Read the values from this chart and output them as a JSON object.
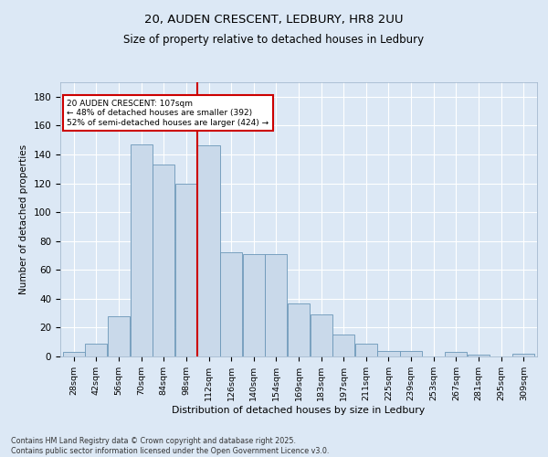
{
  "title_line1": "20, AUDEN CRESCENT, LEDBURY, HR8 2UU",
  "title_line2": "Size of property relative to detached houses in Ledbury",
  "xlabel": "Distribution of detached houses by size in Ledbury",
  "ylabel": "Number of detached properties",
  "bar_labels": [
    "28sqm",
    "42sqm",
    "56sqm",
    "70sqm",
    "84sqm",
    "98sqm",
    "112sqm",
    "126sqm",
    "140sqm",
    "154sqm",
    "169sqm",
    "183sqm",
    "197sqm",
    "211sqm",
    "225sqm",
    "239sqm",
    "253sqm",
    "267sqm",
    "281sqm",
    "295sqm",
    "309sqm"
  ],
  "bar_values": [
    3,
    9,
    28,
    147,
    133,
    120,
    146,
    72,
    71,
    71,
    37,
    29,
    15,
    9,
    4,
    4,
    0,
    3,
    1,
    0,
    2
  ],
  "bar_color": "#c9d9ea",
  "bar_edge_color": "#6a96b8",
  "bg_color": "#dce8f5",
  "grid_color": "#ffffff",
  "vline_color": "#cc0000",
  "annotation_text": "20 AUDEN CRESCENT: 107sqm\n← 48% of detached houses are smaller (392)\n52% of semi-detached houses are larger (424) →",
  "annotation_box_color": "#ffffff",
  "annotation_box_edge": "#cc0000",
  "ylim": [
    0,
    190
  ],
  "yticks": [
    0,
    20,
    40,
    60,
    80,
    100,
    120,
    140,
    160,
    180
  ],
  "footnote": "Contains HM Land Registry data © Crown copyright and database right 2025.\nContains public sector information licensed under the Open Government Licence v3.0.",
  "bin_width": 14
}
